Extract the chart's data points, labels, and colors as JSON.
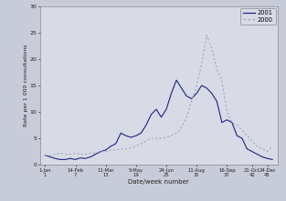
{
  "xlabel": "Date/week number",
  "ylabel": "Rate per 1 000 consultations",
  "ylim": [
    0,
    30
  ],
  "yticks": [
    0,
    5,
    10,
    15,
    20,
    25,
    30
  ],
  "bg_color": "#c8ccd8",
  "plot_bg_color": "#d8dbe6",
  "legend_labels": [
    "2001",
    "2000"
  ],
  "line2001_color": "#1a237e",
  "line2000_color": "#9fa8be",
  "xtick_labels": [
    "1-Jan\n1",
    "14-Feb\n7",
    "11-Mar\n13",
    "5-May\n19",
    "24-Jun\n25",
    "11-Aug\n31",
    "16-Sep\n37",
    "21-Oct\n42",
    "24-Dec\n45"
  ],
  "xtick_positions": [
    1,
    7,
    13,
    19,
    25,
    31,
    37,
    42,
    45
  ],
  "xlim": [
    0,
    47
  ],
  "weeks_2001": [
    1,
    2,
    3,
    4,
    5,
    6,
    7,
    8,
    9,
    10,
    11,
    12,
    13,
    14,
    15,
    16,
    17,
    18,
    19,
    20,
    21,
    22,
    23,
    24,
    25,
    26,
    27,
    28,
    29,
    30,
    31,
    32,
    33,
    34,
    35,
    36,
    37,
    38,
    39,
    40,
    41,
    42,
    43,
    44,
    45,
    46
  ],
  "values_2001": [
    1.8,
    1.5,
    1.2,
    1.0,
    1.0,
    1.2,
    1.0,
    1.3,
    1.2,
    1.5,
    2.0,
    2.5,
    2.8,
    3.5,
    4.0,
    6.0,
    5.5,
    5.2,
    5.5,
    6.0,
    7.5,
    9.5,
    10.5,
    9.0,
    10.5,
    13.5,
    16.0,
    14.5,
    13.0,
    12.5,
    13.5,
    15.0,
    14.5,
    13.5,
    12.0,
    8.0,
    8.5,
    8.0,
    5.5,
    5.0,
    3.0,
    2.5,
    2.0,
    1.5,
    1.2,
    1.0
  ],
  "weeks_2000": [
    1,
    2,
    3,
    4,
    5,
    6,
    7,
    8,
    9,
    10,
    11,
    12,
    13,
    14,
    15,
    16,
    17,
    18,
    19,
    20,
    21,
    22,
    23,
    24,
    25,
    26,
    27,
    28,
    29,
    30,
    31,
    32,
    33,
    34,
    35,
    36,
    37,
    38,
    39,
    40,
    41,
    42,
    43,
    44,
    45,
    46
  ],
  "values_2000": [
    1.8,
    1.8,
    2.0,
    2.2,
    2.0,
    2.0,
    2.2,
    2.0,
    2.0,
    2.2,
    2.3,
    2.5,
    2.5,
    2.8,
    2.8,
    3.0,
    3.0,
    3.2,
    3.5,
    4.0,
    4.5,
    5.0,
    5.0,
    5.0,
    5.2,
    5.5,
    6.0,
    7.0,
    9.0,
    12.0,
    15.0,
    19.0,
    24.5,
    22.0,
    18.0,
    16.0,
    10.0,
    8.0,
    7.5,
    6.5,
    5.5,
    4.5,
    3.5,
    3.0,
    2.5,
    3.5
  ]
}
